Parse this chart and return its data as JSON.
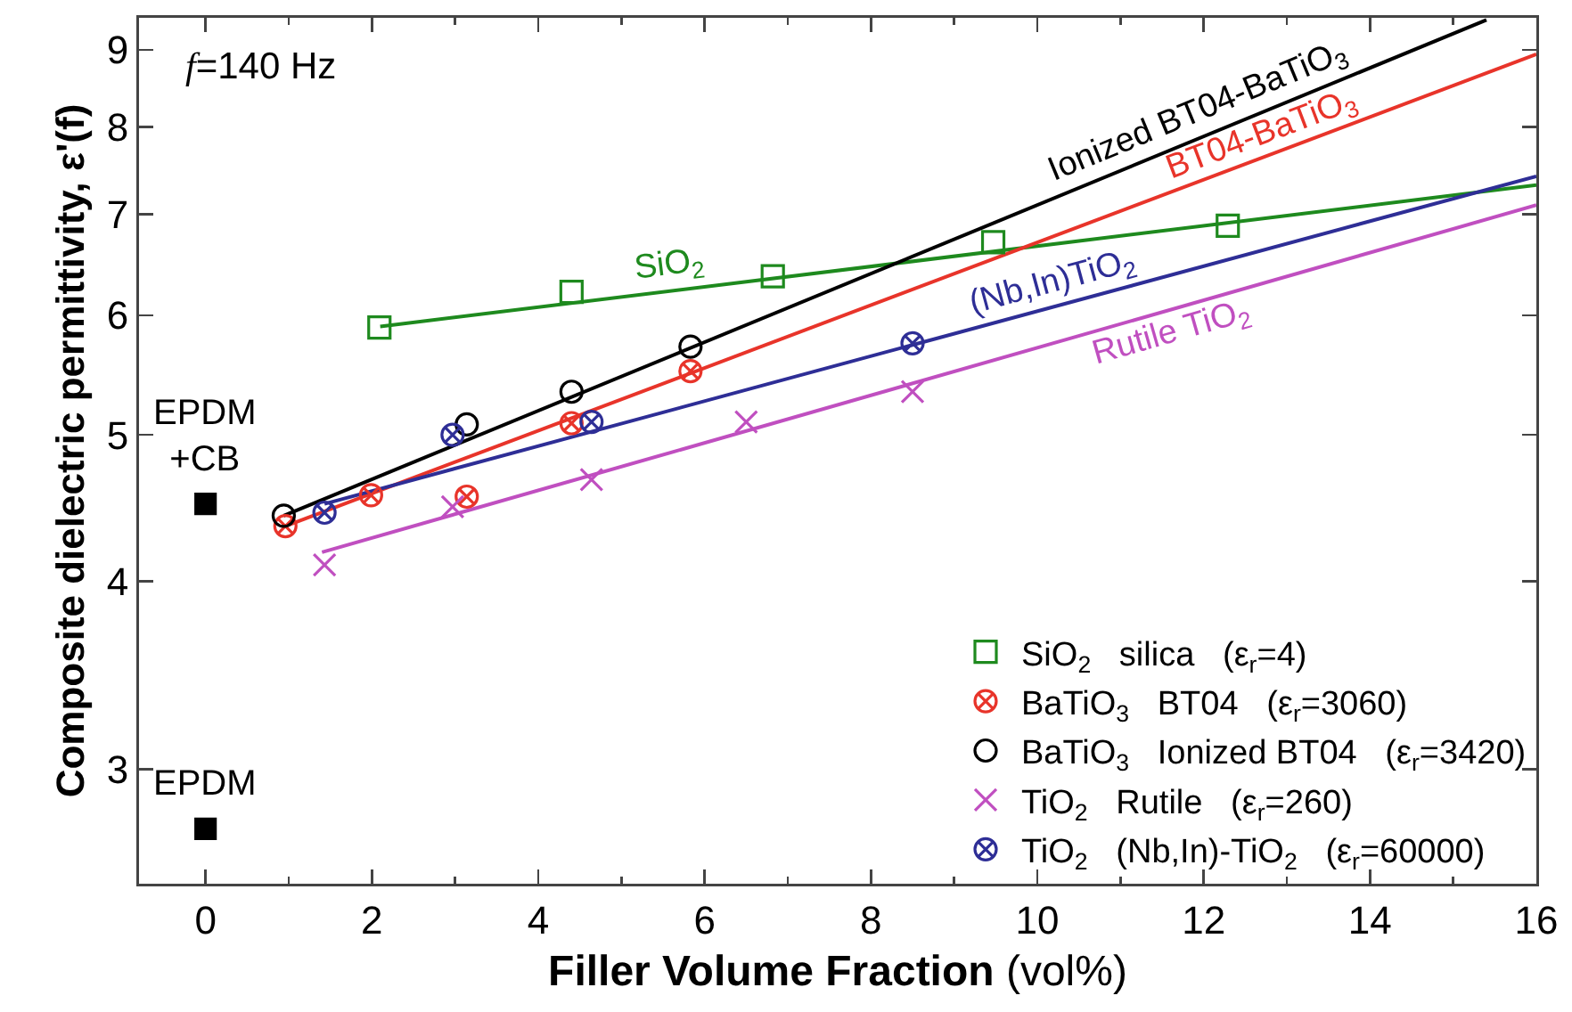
{
  "chart_data": {
    "type": "scatter",
    "xlabel": "Filler Volume Fraction (vol%)",
    "ylabel": "Composite dielectric permittivity, ε'(f)",
    "annotations": [
      "f=140 Hz"
    ],
    "xlim": [
      -0.8,
      16
    ],
    "ylim": [
      2.52,
      9.45
    ],
    "xticks": [
      0,
      2,
      4,
      6,
      8,
      10,
      12,
      14,
      16
    ],
    "yticks": [
      3,
      4,
      5,
      6,
      7,
      8,
      9
    ],
    "log": "y",
    "legend": "bottom right",
    "series": [
      {
        "type": "line",
        "name": "SiO$_{2}$",
        "color": "#1e8a1e",
        "marker": "none",
        "x": [
          2.1,
          16
        ],
        "values": [
          5.9,
          7.32
        ]
      },
      {
        "type": "line",
        "name": "BT04-BaTiO$_{3}$",
        "color": "#e8342a",
        "marker": "none",
        "x": [
          0.96,
          16
        ],
        "values": [
          4.35,
          8.94
        ]
      },
      {
        "type": "line",
        "name": "Ionized BT04-BaTiO$_{3}$",
        "color": "#000000",
        "marker": "none",
        "x": [
          0.94,
          15.4
        ],
        "values": [
          4.42,
          9.42
        ]
      },
      {
        "type": "line",
        "name": "Rutile TiO$_{2}$",
        "color": "#c04fc0",
        "marker": "none",
        "x": [
          1.4,
          16
        ],
        "values": [
          4.18,
          7.1
        ]
      },
      {
        "type": "line",
        "name": "(Nb,In)TiO$_{2}$",
        "color": "#2e2e96",
        "marker": "none",
        "x": [
          1.43,
          16
        ],
        "values": [
          4.5,
          7.42
        ]
      },
      {
        "name": "SiO$_{2}$ silica (ε$_{r}$=4)",
        "color": "#1e8a1e",
        "marker": "square",
        "x": [
          2.09,
          4.4,
          6.82,
          9.47,
          12.29
        ],
        "values": [
          5.89,
          6.22,
          6.37,
          6.71,
          6.88
        ]
      },
      {
        "name": "BaTiO$_{3}$ BT04 (ε$_{r}$=3060)",
        "color": "#e8342a",
        "x": [
          0.96,
          1.99,
          3.14,
          4.4,
          5.83
        ],
        "values": [
          4.35,
          4.56,
          4.55,
          5.09,
          5.51
        ]
      },
      {
        "name": "BaTiO$_{3}$ Ionized BT04 (ε$_{r}$=3420)",
        "color": "#000000",
        "marker": "circle",
        "x": [
          0.94,
          3.14,
          4.4,
          5.83
        ],
        "values": [
          4.42,
          5.08,
          5.34,
          5.72
        ]
      },
      {
        "name": "TiO$_{2}$ Rutile (ε$_{r}$=260)",
        "color": "#c04fc0",
        "marker": "cross",
        "x": [
          1.43,
          2.97,
          4.64,
          6.5,
          8.5
        ],
        "values": [
          4.1,
          4.48,
          4.67,
          5.1,
          5.34
        ]
      },
      {
        "name": "TiO$_{2}$ (Nb,In)-TiO$_{2}$ (ε$_{r}$=60000)",
        "color": "#2e2e96",
        "x": [
          1.43,
          2.97,
          4.64,
          8.5
        ],
        "values": [
          4.44,
          5.0,
          5.1,
          5.75
        ]
      },
      {
        "name": "EPDM\n+CB",
        "color": "#000000",
        "marker": "square",
        "x": [
          0
        ],
        "values": [
          4.5
        ]
      },
      {
        "name": "EPDM",
        "color": "#000000",
        "marker": "square",
        "x": [
          0
        ],
        "values": [
          2.74
        ]
      }
    ]
  }
}
